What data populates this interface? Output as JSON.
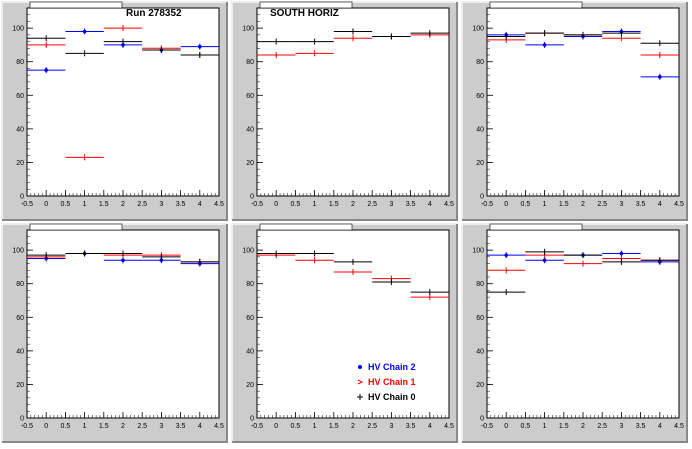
{
  "panels_common": {
    "x_tick_labels": [
      "-0.5",
      "0",
      "0.5",
      "1",
      "1.5",
      "2",
      "2.5",
      "3",
      "3.5",
      "4",
      "4.5"
    ],
    "y_tick_labels": [
      "0",
      "20",
      "40",
      "60",
      "80",
      "100"
    ]
  },
  "legend": {
    "entries": [
      {
        "label": "HV Chain 2",
        "color": "#0000ff",
        "marker": "dot"
      },
      {
        "label": "HV Chain 1",
        "color": "#ff0000",
        "marker": "arrow"
      },
      {
        "label": "HV Chain 0",
        "color": "#000000",
        "marker": "cross"
      }
    ]
  },
  "colors": {
    "chain2": "#0000ff",
    "chain1": "#ff0000",
    "chain0": "#000000",
    "pad_bg": "#cccccc",
    "frame_bg": "#ffffff"
  },
  "chart_data": [
    {
      "type": "scatter",
      "panel": "top-left",
      "title": "Run 278352",
      "xlim": [
        -0.5,
        4.5
      ],
      "ylim": [
        0,
        112
      ],
      "x": [
        0,
        1,
        2,
        3,
        4
      ],
      "series": [
        {
          "name": "HV Chain 2",
          "values": [
            75,
            98,
            90,
            87,
            89
          ]
        },
        {
          "name": "HV Chain 1",
          "values": [
            90,
            23,
            100,
            88,
            84
          ]
        },
        {
          "name": "HV Chain 0",
          "values": [
            94,
            85,
            92,
            87,
            84
          ]
        }
      ]
    },
    {
      "type": "scatter",
      "panel": "top-middle",
      "title": "SOUTH HORIZ",
      "xlim": [
        -0.5,
        4.5
      ],
      "ylim": [
        0,
        112
      ],
      "x": [
        0,
        1,
        2,
        3,
        4
      ],
      "series": [
        {
          "name": "HV Chain 2",
          "values": [
            null,
            null,
            null,
            null,
            null
          ]
        },
        {
          "name": "HV Chain 1",
          "values": [
            84,
            85,
            94,
            95,
            96
          ]
        },
        {
          "name": "HV Chain 0",
          "values": [
            92,
            92,
            98,
            95,
            97
          ]
        }
      ]
    },
    {
      "type": "scatter",
      "panel": "top-right",
      "title": "",
      "xlim": [
        -0.5,
        4.5
      ],
      "ylim": [
        0,
        112
      ],
      "x": [
        0,
        1,
        2,
        3,
        4
      ],
      "series": [
        {
          "name": "HV Chain 2",
          "values": [
            96,
            90,
            95,
            98,
            71
          ]
        },
        {
          "name": "HV Chain 1",
          "values": [
            93,
            97,
            96,
            94,
            84
          ]
        },
        {
          "name": "HV Chain 0",
          "values": [
            95,
            97,
            96,
            97,
            91
          ]
        }
      ]
    },
    {
      "type": "scatter",
      "panel": "bottom-left",
      "title": "",
      "xlim": [
        -0.5,
        4.5
      ],
      "ylim": [
        0,
        112
      ],
      "x": [
        0,
        1,
        2,
        3,
        4
      ],
      "series": [
        {
          "name": "HV Chain 2",
          "values": [
            95,
            98,
            94,
            94,
            92
          ]
        },
        {
          "name": "HV Chain 1",
          "values": [
            96,
            98,
            97,
            97,
            93
          ]
        },
        {
          "name": "HV Chain 0",
          "values": [
            97,
            98,
            98,
            96,
            93
          ]
        }
      ]
    },
    {
      "type": "scatter",
      "panel": "bottom-middle",
      "title": "",
      "xlim": [
        -0.5,
        4.5
      ],
      "ylim": [
        0,
        112
      ],
      "x": [
        0,
        1,
        2,
        3,
        4
      ],
      "series": [
        {
          "name": "HV Chain 2",
          "values": [
            null,
            null,
            null,
            null,
            null
          ]
        },
        {
          "name": "HV Chain 1",
          "values": [
            97,
            94,
            87,
            83,
            72
          ]
        },
        {
          "name": "HV Chain 0",
          "values": [
            98,
            98,
            93,
            81,
            75
          ]
        }
      ]
    },
    {
      "type": "scatter",
      "panel": "bottom-right",
      "title": "",
      "xlim": [
        -0.5,
        4.5
      ],
      "ylim": [
        0,
        112
      ],
      "x": [
        0,
        1,
        2,
        3,
        4
      ],
      "series": [
        {
          "name": "HV Chain 2",
          "values": [
            97,
            94,
            97,
            98,
            93
          ]
        },
        {
          "name": "HV Chain 1",
          "values": [
            88,
            97,
            92,
            95,
            94
          ]
        },
        {
          "name": "HV Chain 0",
          "values": [
            75,
            99,
            97,
            93,
            94
          ]
        }
      ]
    }
  ]
}
